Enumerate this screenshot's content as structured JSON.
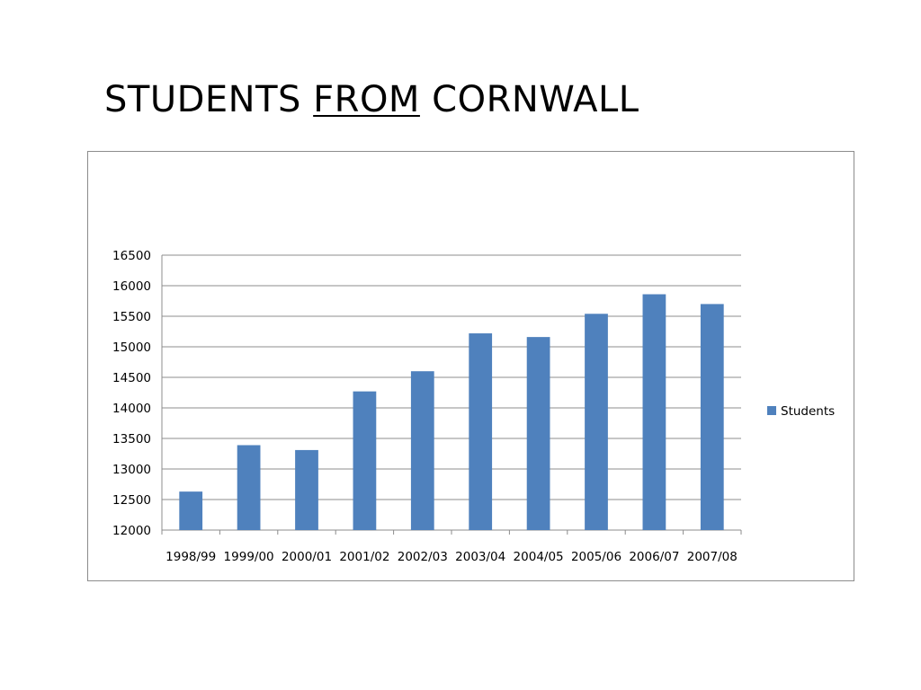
{
  "slide": {
    "title_pre": "STUDENTS ",
    "title_underlined": "FROM",
    "title_post": " CORNWALL"
  },
  "chart_data": {
    "type": "bar",
    "title": "",
    "xlabel": "",
    "ylabel": "",
    "categories": [
      "1998/99",
      "1999/00",
      "2000/01",
      "2001/02",
      "2002/03",
      "2003/04",
      "2004/05",
      "2005/06",
      "2006/07",
      "2007/08"
    ],
    "series": [
      {
        "name": "Students",
        "color": "#4f81bd",
        "values": [
          12630,
          13390,
          13310,
          14270,
          14600,
          15220,
          15160,
          15540,
          15860,
          15700
        ]
      }
    ],
    "ylim": [
      12000,
      16500
    ],
    "yticks": [
      12000,
      12500,
      13000,
      13500,
      14000,
      14500,
      15000,
      15500,
      16000,
      16500
    ],
    "grid": true,
    "legend": "right",
    "gridline_color": "#8c8c8c"
  }
}
